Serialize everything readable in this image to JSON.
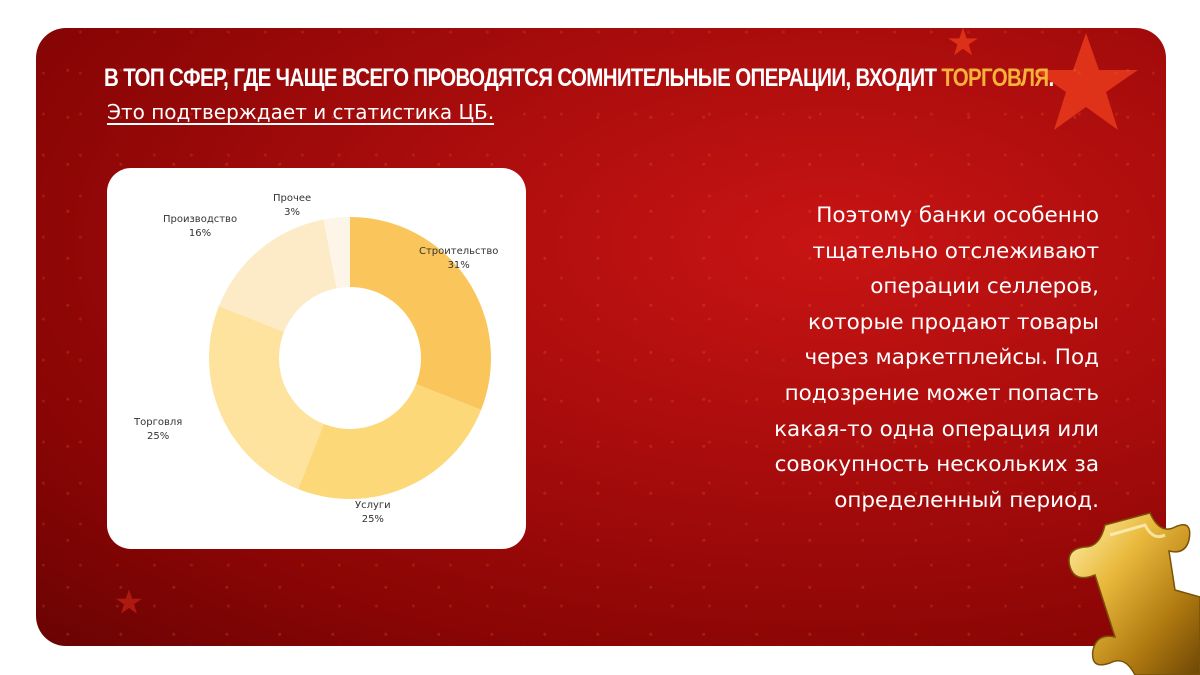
{
  "headline": {
    "main": "В топ сфер, где чаще всего проводятся сомнительные операции, входит",
    "accent": "торговля",
    "end": "."
  },
  "subline": "Это подтверждает и статистика ЦБ.",
  "body_lines": [
    "Поэтому банки особенно",
    "тщательно отслеживают",
    "операции селлеров,",
    "которые продают товары",
    "через маркетплейсы. Под",
    "подозрение может попасть",
    "какая-то одна операция или",
    "совокупность нескольких за",
    "определенный период."
  ],
  "colors": {
    "background": "#a80c0c",
    "accent": "#f6b23a",
    "slices": [
      "#fac55a",
      "#fcd878",
      "#fde39e",
      "#fdebc8",
      "#fdf5e8"
    ]
  },
  "chart_data": {
    "type": "pie",
    "variant": "donut",
    "categories": [
      "Строительство",
      "Услуги",
      "Торговля",
      "Производство",
      "Прочее"
    ],
    "values": [
      31,
      25,
      25,
      16,
      3
    ],
    "value_labels": [
      "31%",
      "25%",
      "25%",
      "16%",
      "3%"
    ],
    "unit": "%",
    "start": "12 o'clock, clockwise"
  }
}
